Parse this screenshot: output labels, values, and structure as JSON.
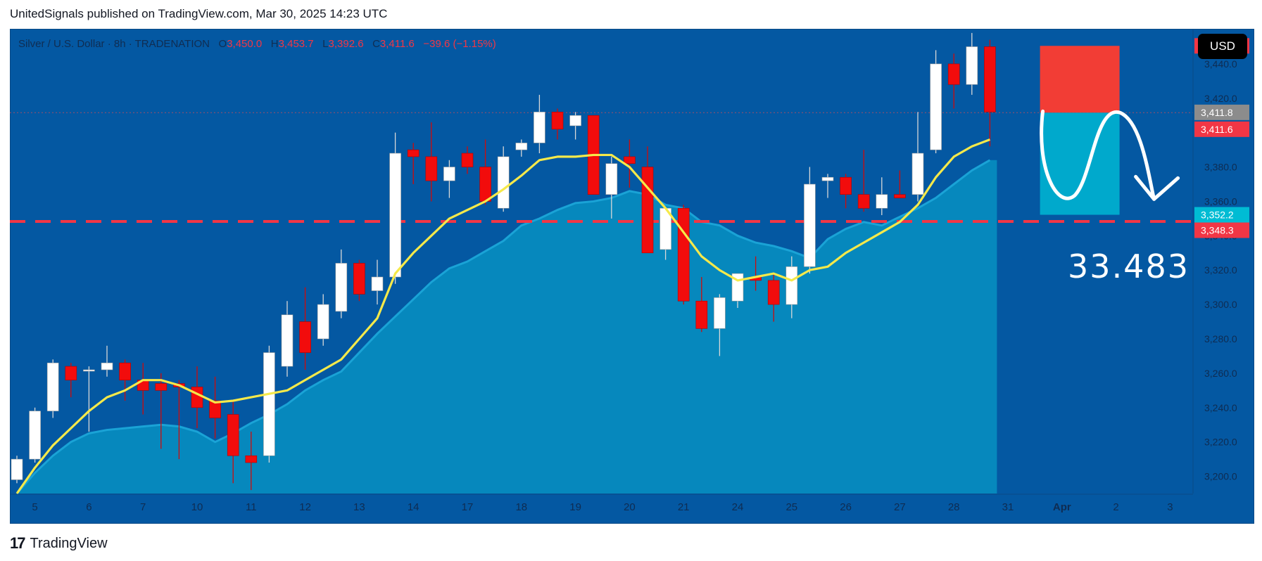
{
  "header": {
    "publisher_line": "UnitedSignals published on TradingView.com, Mar 30, 2025 14:23 UTC"
  },
  "legend": {
    "symbol": "Silver / U.S. Dollar · 8h · TRADENATION",
    "o_label": "O",
    "o_value": "3,450.0",
    "h_label": "H",
    "h_value": "3,453.7",
    "l_label": "L",
    "l_value": "3,392.6",
    "c_label": "C",
    "c_value": "3,411.6",
    "change": "−39.6 (−1.15%)"
  },
  "currency_button": "USD",
  "footer": {
    "logo": "17",
    "brand": "TradingView"
  },
  "chart_data": {
    "type": "candlestick",
    "y_ticks": [
      3200,
      3220,
      3240,
      3260,
      3280,
      3300,
      3320,
      3340,
      3360,
      3380,
      3400,
      3420,
      3440
    ],
    "y_tick_labels": [
      "3,200.0",
      "3,220.0",
      "3,240.0",
      "3,260.0",
      "3,280.0",
      "3,300.0",
      "3,320.0",
      "3,340.0",
      "3,360.0",
      "3,380.0",
      "3,400.0",
      "3,420.0",
      "3,440.0"
    ],
    "ylim": [
      3190,
      3460
    ],
    "x_labels": [
      "5",
      "6",
      "7",
      "10",
      "11",
      "12",
      "13",
      "14",
      "17",
      "18",
      "19",
      "20",
      "21",
      "24",
      "25",
      "26",
      "27",
      "28",
      "31",
      "Apr",
      "2",
      "3"
    ],
    "x_label_slots": [
      1,
      4,
      7,
      10,
      13,
      16,
      19,
      22,
      25,
      28,
      31,
      34,
      37,
      40,
      43,
      46,
      49,
      52,
      55,
      58,
      61,
      64
    ],
    "candles": [
      [
        3198,
        3212,
        3196,
        3210
      ],
      [
        3210,
        3240,
        3208,
        3238
      ],
      [
        3238,
        3268,
        3234,
        3266
      ],
      [
        3264,
        3266,
        3246,
        3256
      ],
      [
        3262,
        3264,
        3226,
        3262
      ],
      [
        3262,
        3276,
        3258,
        3266
      ],
      [
        3266,
        3268,
        3244,
        3256
      ],
      [
        3256,
        3266,
        3236,
        3250
      ],
      [
        3254,
        3260,
        3216,
        3250
      ],
      [
        3254,
        3256,
        3210,
        3252
      ],
      [
        3252,
        3264,
        3228,
        3240
      ],
      [
        3244,
        3258,
        3222,
        3234
      ],
      [
        3236,
        3244,
        3196,
        3212
      ],
      [
        3212,
        3226,
        3192,
        3208
      ],
      [
        3212,
        3276,
        3208,
        3272
      ],
      [
        3264,
        3302,
        3258,
        3294
      ],
      [
        3290,
        3310,
        3262,
        3272
      ],
      [
        3280,
        3306,
        3276,
        3300
      ],
      [
        3296,
        3332,
        3292,
        3324
      ],
      [
        3324,
        3326,
        3302,
        3306
      ],
      [
        3308,
        3326,
        3300,
        3316
      ],
      [
        3316,
        3400,
        3312,
        3388
      ],
      [
        3390,
        3394,
        3370,
        3386
      ],
      [
        3386,
        3406,
        3360,
        3372
      ],
      [
        3372,
        3384,
        3362,
        3380
      ],
      [
        3388,
        3392,
        3376,
        3380
      ],
      [
        3380,
        3396,
        3358,
        3360
      ],
      [
        3356,
        3392,
        3354,
        3386
      ],
      [
        3390,
        3396,
        3386,
        3394
      ],
      [
        3394,
        3422,
        3388,
        3412
      ],
      [
        3412,
        3414,
        3396,
        3402
      ],
      [
        3404,
        3412,
        3396,
        3410
      ],
      [
        3410,
        3410,
        3366,
        3364
      ],
      [
        3364,
        3386,
        3350,
        3382
      ],
      [
        3386,
        3396,
        3368,
        3382
      ],
      [
        3380,
        3392,
        3330,
        3330
      ],
      [
        3332,
        3356,
        3326,
        3356
      ],
      [
        3356,
        3358,
        3300,
        3302
      ],
      [
        3302,
        3316,
        3284,
        3286
      ],
      [
        3286,
        3306,
        3270,
        3304
      ],
      [
        3302,
        3318,
        3298,
        3318
      ],
      [
        3316,
        3328,
        3308,
        3314
      ],
      [
        3314,
        3318,
        3290,
        3300
      ],
      [
        3300,
        3328,
        3292,
        3322
      ],
      [
        3322,
        3380,
        3318,
        3370
      ],
      [
        3372,
        3376,
        3362,
        3374
      ],
      [
        3374,
        3376,
        3356,
        3364
      ],
      [
        3364,
        3390,
        3354,
        3356
      ],
      [
        3356,
        3374,
        3352,
        3364
      ],
      [
        3364,
        3378,
        3362,
        3362
      ],
      [
        3364,
        3412,
        3360,
        3388
      ],
      [
        3390,
        3448,
        3388,
        3440
      ],
      [
        3440,
        3446,
        3414,
        3428
      ],
      [
        3428,
        3458,
        3422,
        3450
      ],
      [
        3450,
        3454,
        3392,
        3412
      ]
    ],
    "ma_yellow": [
      3190,
      3205,
      3218,
      3228,
      3238,
      3246,
      3250,
      3256,
      3256,
      3253,
      3248,
      3243,
      3244,
      3246,
      3248,
      3250,
      3256,
      3262,
      3268,
      3280,
      3292,
      3318,
      3330,
      3340,
      3350,
      3355,
      3360,
      3367,
      3375,
      3384,
      3386,
      3386,
      3387,
      3387,
      3380,
      3368,
      3356,
      3342,
      3328,
      3320,
      3314,
      3316,
      3318,
      3314,
      3320,
      3322,
      3330,
      3336,
      3342,
      3348,
      3358,
      3374,
      3386,
      3392,
      3396
    ],
    "area_series": [
      3190,
      3202,
      3212,
      3220,
      3225,
      3227,
      3228,
      3229,
      3230,
      3229,
      3226,
      3220,
      3225,
      3231,
      3236,
      3242,
      3250,
      3256,
      3261,
      3272,
      3283,
      3293,
      3303,
      3313,
      3321,
      3325,
      3331,
      3337,
      3346,
      3350,
      3355,
      3359,
      3360,
      3362,
      3366,
      3364,
      3358,
      3356,
      3348,
      3346,
      3340,
      3336,
      3334,
      3331,
      3327,
      3338,
      3344,
      3348,
      3346,
      3351,
      3356,
      3362,
      3370,
      3378,
      3384
    ],
    "price_levels": [
      {
        "value": 3450.5,
        "label": "3,450.5",
        "color": "#f23645"
      },
      {
        "value": 3411.8,
        "label": "3,411.8",
        "color": "#8c8c8c"
      },
      {
        "value": 3411.6,
        "label": "3,411.6",
        "color": "#f23645"
      },
      {
        "value": 3352.2,
        "label": "3,352.2",
        "color": "#00bcd4"
      },
      {
        "value": 3348.3,
        "label": "3,348.3",
        "color": "#f23645"
      }
    ],
    "dashed_level": 3348.3,
    "short_position": {
      "entry": 3411.6,
      "stop": 3450.5,
      "target": 3352.2,
      "start_slot": 56,
      "end_slot": 61
    },
    "target_text": "33.483",
    "colors": {
      "up": "#ffffff",
      "down": "#f20c0c",
      "ma": "#f5e94a",
      "area": "#0790c2",
      "bg": "#0458a2",
      "risk": "#f23d35",
      "reward": "#00a9cc",
      "dash": "#f23645"
    }
  }
}
